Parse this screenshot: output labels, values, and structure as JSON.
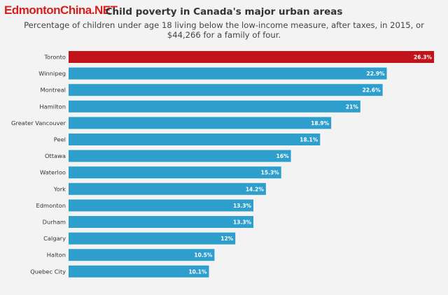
{
  "watermark": "EdmontonChina.NET",
  "chart_data": {
    "type": "bar",
    "orientation": "horizontal",
    "title": "Child poverty in Canada's major urban areas",
    "subtitle": "Percentage of children under age 18 living below the low-income measure, after taxes, in 2015, or $44,266 for a family of four.",
    "xlabel": "",
    "ylabel": "",
    "xlim": [
      0,
      27
    ],
    "grid": false,
    "categories": [
      "Toronto",
      "Winnipeg",
      "Montreal",
      "Hamilton",
      "Greater Vancouver",
      "Peel",
      "Ottawa",
      "Waterloo",
      "York",
      "Edmonton",
      "Durham",
      "Calgary",
      "Halton",
      "Quebec City"
    ],
    "values": [
      26.3,
      22.9,
      22.6,
      21,
      18.9,
      18.1,
      16,
      15.3,
      14.2,
      13.3,
      13.3,
      12,
      10.5,
      10.1
    ],
    "value_labels": [
      "26.3%",
      "22.9%",
      "22.6%",
      "21%",
      "18.9%",
      "18.1%",
      "16%",
      "15.3%",
      "14.2%",
      "13.3%",
      "13.3%",
      "12%",
      "10.5%",
      "10.1%"
    ],
    "highlight_index": 0,
    "colors": {
      "bar": "#2e9fcc",
      "highlight": "#c0141a"
    }
  }
}
